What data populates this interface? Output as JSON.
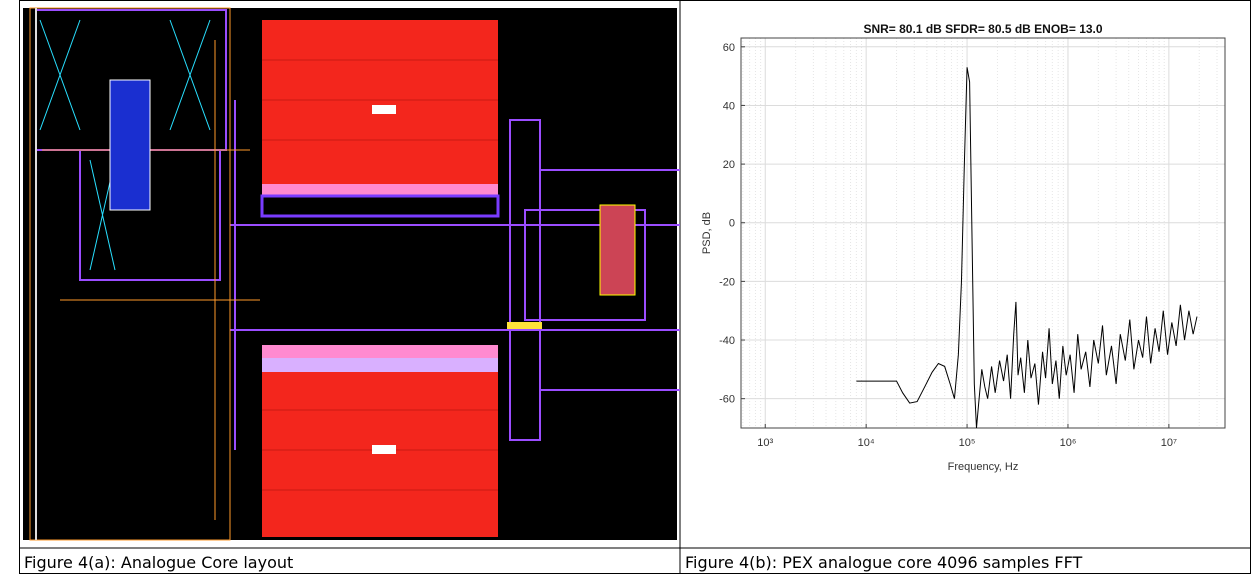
{
  "figures": [
    {
      "caption": "Figure 4(a): Analogue Core layout"
    },
    {
      "caption": "Figure 4(b): PEX analogue core 4096 samples FFT",
      "chart_data": {
        "type": "line",
        "title": "SNR= 80.1 dB SFDR= 80.5 dB ENOB= 13.0",
        "xlabel": "Frequency, Hz",
        "ylabel": "PSD, dB",
        "color": "#000000",
        "log_x": true,
        "grid": true,
        "xlim": [
          575,
          36000000
        ],
        "ylim": [
          -70,
          63
        ],
        "xticks": [
          {
            "value": 1000,
            "label": "10³"
          },
          {
            "value": 10000,
            "label": "10⁴"
          },
          {
            "value": 100000,
            "label": "10⁵"
          },
          {
            "value": 1000000,
            "label": "10⁶"
          },
          {
            "value": 10000000,
            "label": "10⁷"
          }
        ],
        "yticks": [
          60,
          40,
          20,
          0,
          -20,
          -40,
          -60
        ],
        "x": [
          8000,
          20000,
          23000,
          27000,
          32000,
          38000,
          45000,
          52000,
          60000,
          68000,
          75000,
          82000,
          88000,
          94000,
          100000,
          106000,
          112000,
          118000,
          124000,
          130000,
          140000,
          150000,
          160000,
          175000,
          190000,
          210000,
          230000,
          250000,
          270000,
          290000,
          305000,
          320000,
          340000,
          370000,
          400000,
          430000,
          470000,
          510000,
          560000,
          600000,
          650000,
          700000,
          760000,
          820000,
          890000,
          960000,
          1050000,
          1150000,
          1250000,
          1350000,
          1500000,
          1650000,
          1800000,
          2000000,
          2200000,
          2400000,
          2700000,
          3000000,
          3300000,
          3700000,
          4100000,
          4500000,
          5000000,
          5500000,
          6000000,
          6600000,
          7300000,
          8000000,
          8800000,
          9700000,
          10700000,
          11800000,
          13000000,
          14300000,
          15800000,
          17400000,
          19000000
        ],
        "values": [
          -54,
          -54,
          -58,
          -61.5,
          -61,
          -56,
          -51,
          -48,
          -49,
          -55,
          -60,
          -45,
          -20,
          20,
          53,
          48,
          -5,
          -55,
          -70,
          -62,
          -50,
          -56,
          -60,
          -49,
          -58,
          -47,
          -54,
          -45,
          -60,
          -38,
          -27,
          -52,
          -46,
          -58,
          -40,
          -53,
          -48,
          -62,
          -44,
          -53,
          -36,
          -55,
          -47,
          -60,
          -42,
          -52,
          -45,
          -58,
          -38,
          -50,
          -44,
          -56,
          -40,
          -48,
          -35,
          -52,
          -42,
          -55,
          -38,
          -47,
          -33,
          -50,
          -40,
          -46,
          -32,
          -48,
          -36,
          -44,
          -30,
          -45,
          -34,
          -42,
          -28,
          -40,
          -30,
          -38,
          -32
        ]
      }
    }
  ]
}
